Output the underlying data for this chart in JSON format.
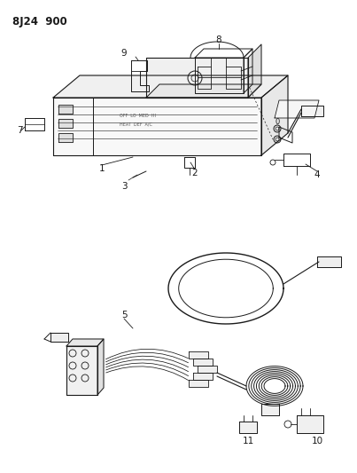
{
  "title": "8J24  900",
  "bg": "#ffffff",
  "lc": "#1a1a1a",
  "fig_width": 4.03,
  "fig_height": 5.33,
  "dpi": 100
}
